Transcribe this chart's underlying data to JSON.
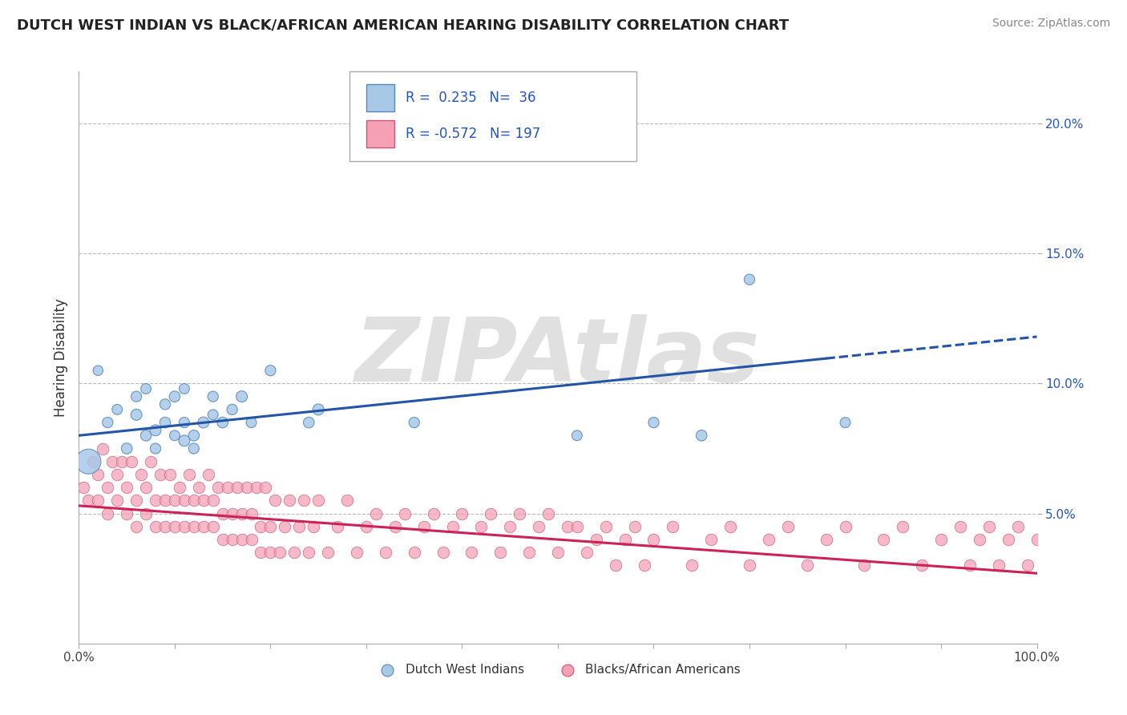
{
  "title": "DUTCH WEST INDIAN VS BLACK/AFRICAN AMERICAN HEARING DISABILITY CORRELATION CHART",
  "source": "Source: ZipAtlas.com",
  "ylabel": "Hearing Disability",
  "xlim": [
    0,
    100
  ],
  "ylim": [
    0,
    22
  ],
  "legend_labels": [
    "Dutch West Indians",
    "Blacks/African Americans"
  ],
  "blue_color": "#a8c8e8",
  "blue_edge": "#5588bb",
  "blue_line": "#2255aa",
  "pink_color": "#f5a0b5",
  "pink_edge": "#cc5577",
  "pink_line": "#cc2255",
  "r_color": "#2255cc",
  "background": "#ffffff",
  "grid_color": "#bbbbbb",
  "watermark": "ZIPAtlas",
  "watermark_color": "#e0e0e0",
  "blue_scatter_x": [
    1,
    2,
    3,
    4,
    5,
    6,
    6,
    7,
    7,
    8,
    8,
    9,
    9,
    10,
    10,
    11,
    11,
    11,
    12,
    12,
    13,
    14,
    14,
    15,
    16,
    17,
    18,
    20,
    24,
    25,
    35,
    52,
    60,
    65,
    70,
    80
  ],
  "blue_scatter_y": [
    7.0,
    10.5,
    8.5,
    9.0,
    7.5,
    8.8,
    9.5,
    8.0,
    9.8,
    7.5,
    8.2,
    8.5,
    9.2,
    8.0,
    9.5,
    7.8,
    8.5,
    9.8,
    7.5,
    8.0,
    8.5,
    8.8,
    9.5,
    8.5,
    9.0,
    9.5,
    8.5,
    10.5,
    8.5,
    9.0,
    8.5,
    8.0,
    8.5,
    8.0,
    14.0,
    8.5
  ],
  "blue_scatter_sizes": [
    500,
    80,
    90,
    85,
    95,
    100,
    90,
    95,
    85,
    90,
    100,
    95,
    90,
    85,
    95,
    100,
    90,
    85,
    90,
    95,
    100,
    85,
    90,
    95,
    90,
    100,
    85,
    90,
    95,
    100,
    90,
    85,
    90,
    95,
    90,
    85
  ],
  "pink_scatter_x": [
    0.5,
    1.0,
    1.5,
    2.0,
    2.0,
    2.5,
    3.0,
    3.0,
    3.5,
    4.0,
    4.0,
    4.5,
    5.0,
    5.0,
    5.5,
    6.0,
    6.0,
    6.5,
    7.0,
    7.0,
    7.5,
    8.0,
    8.0,
    8.5,
    9.0,
    9.0,
    9.5,
    10.0,
    10.0,
    10.5,
    11.0,
    11.0,
    11.5,
    12.0,
    12.0,
    12.5,
    13.0,
    13.0,
    13.5,
    14.0,
    14.0,
    14.5,
    15.0,
    15.0,
    15.5,
    16.0,
    16.0,
    16.5,
    17.0,
    17.0,
    17.5,
    18.0,
    18.0,
    18.5,
    19.0,
    19.0,
    19.5,
    20.0,
    20.0,
    20.5,
    21.0,
    21.5,
    22.0,
    22.5,
    23.0,
    23.5,
    24.0,
    24.5,
    25.0,
    26.0,
    27.0,
    28.0,
    29.0,
    30.0,
    31.0,
    32.0,
    33.0,
    34.0,
    35.0,
    36.0,
    37.0,
    38.0,
    39.0,
    40.0,
    41.0,
    42.0,
    43.0,
    44.0,
    45.0,
    46.0,
    47.0,
    48.0,
    49.0,
    50.0,
    51.0,
    52.0,
    53.0,
    54.0,
    55.0,
    56.0,
    57.0,
    58.0,
    59.0,
    60.0,
    62.0,
    64.0,
    66.0,
    68.0,
    70.0,
    72.0,
    74.0,
    76.0,
    78.0,
    80.0,
    82.0,
    84.0,
    86.0,
    88.0,
    90.0,
    92.0,
    93.0,
    94.0,
    95.0,
    96.0,
    97.0,
    98.0,
    99.0,
    100.0
  ],
  "pink_scatter_y": [
    6.0,
    5.5,
    7.0,
    5.5,
    6.5,
    7.5,
    5.0,
    6.0,
    7.0,
    5.5,
    6.5,
    7.0,
    5.0,
    6.0,
    7.0,
    4.5,
    5.5,
    6.5,
    5.0,
    6.0,
    7.0,
    4.5,
    5.5,
    6.5,
    4.5,
    5.5,
    6.5,
    4.5,
    5.5,
    6.0,
    4.5,
    5.5,
    6.5,
    4.5,
    5.5,
    6.0,
    4.5,
    5.5,
    6.5,
    4.5,
    5.5,
    6.0,
    4.0,
    5.0,
    6.0,
    4.0,
    5.0,
    6.0,
    4.0,
    5.0,
    6.0,
    4.0,
    5.0,
    6.0,
    3.5,
    4.5,
    6.0,
    3.5,
    4.5,
    5.5,
    3.5,
    4.5,
    5.5,
    3.5,
    4.5,
    5.5,
    3.5,
    4.5,
    5.5,
    3.5,
    4.5,
    5.5,
    3.5,
    4.5,
    5.0,
    3.5,
    4.5,
    5.0,
    3.5,
    4.5,
    5.0,
    3.5,
    4.5,
    5.0,
    3.5,
    4.5,
    5.0,
    3.5,
    4.5,
    5.0,
    3.5,
    4.5,
    5.0,
    3.5,
    4.5,
    4.5,
    3.5,
    4.0,
    4.5,
    3.0,
    4.0,
    4.5,
    3.0,
    4.0,
    4.5,
    3.0,
    4.0,
    4.5,
    3.0,
    4.0,
    4.5,
    3.0,
    4.0,
    4.5,
    3.0,
    4.0,
    4.5,
    3.0,
    4.0,
    4.5,
    3.0,
    4.0,
    4.5,
    3.0,
    4.0,
    4.5,
    3.0,
    4.0
  ],
  "blue_line_x0": 0,
  "blue_line_x1": 100,
  "blue_line_y0": 8.0,
  "blue_line_y1": 11.8,
  "blue_line_solid_end_x": 78,
  "pink_line_x0": 0,
  "pink_line_x1": 100,
  "pink_line_y0": 5.3,
  "pink_line_y1": 2.7
}
